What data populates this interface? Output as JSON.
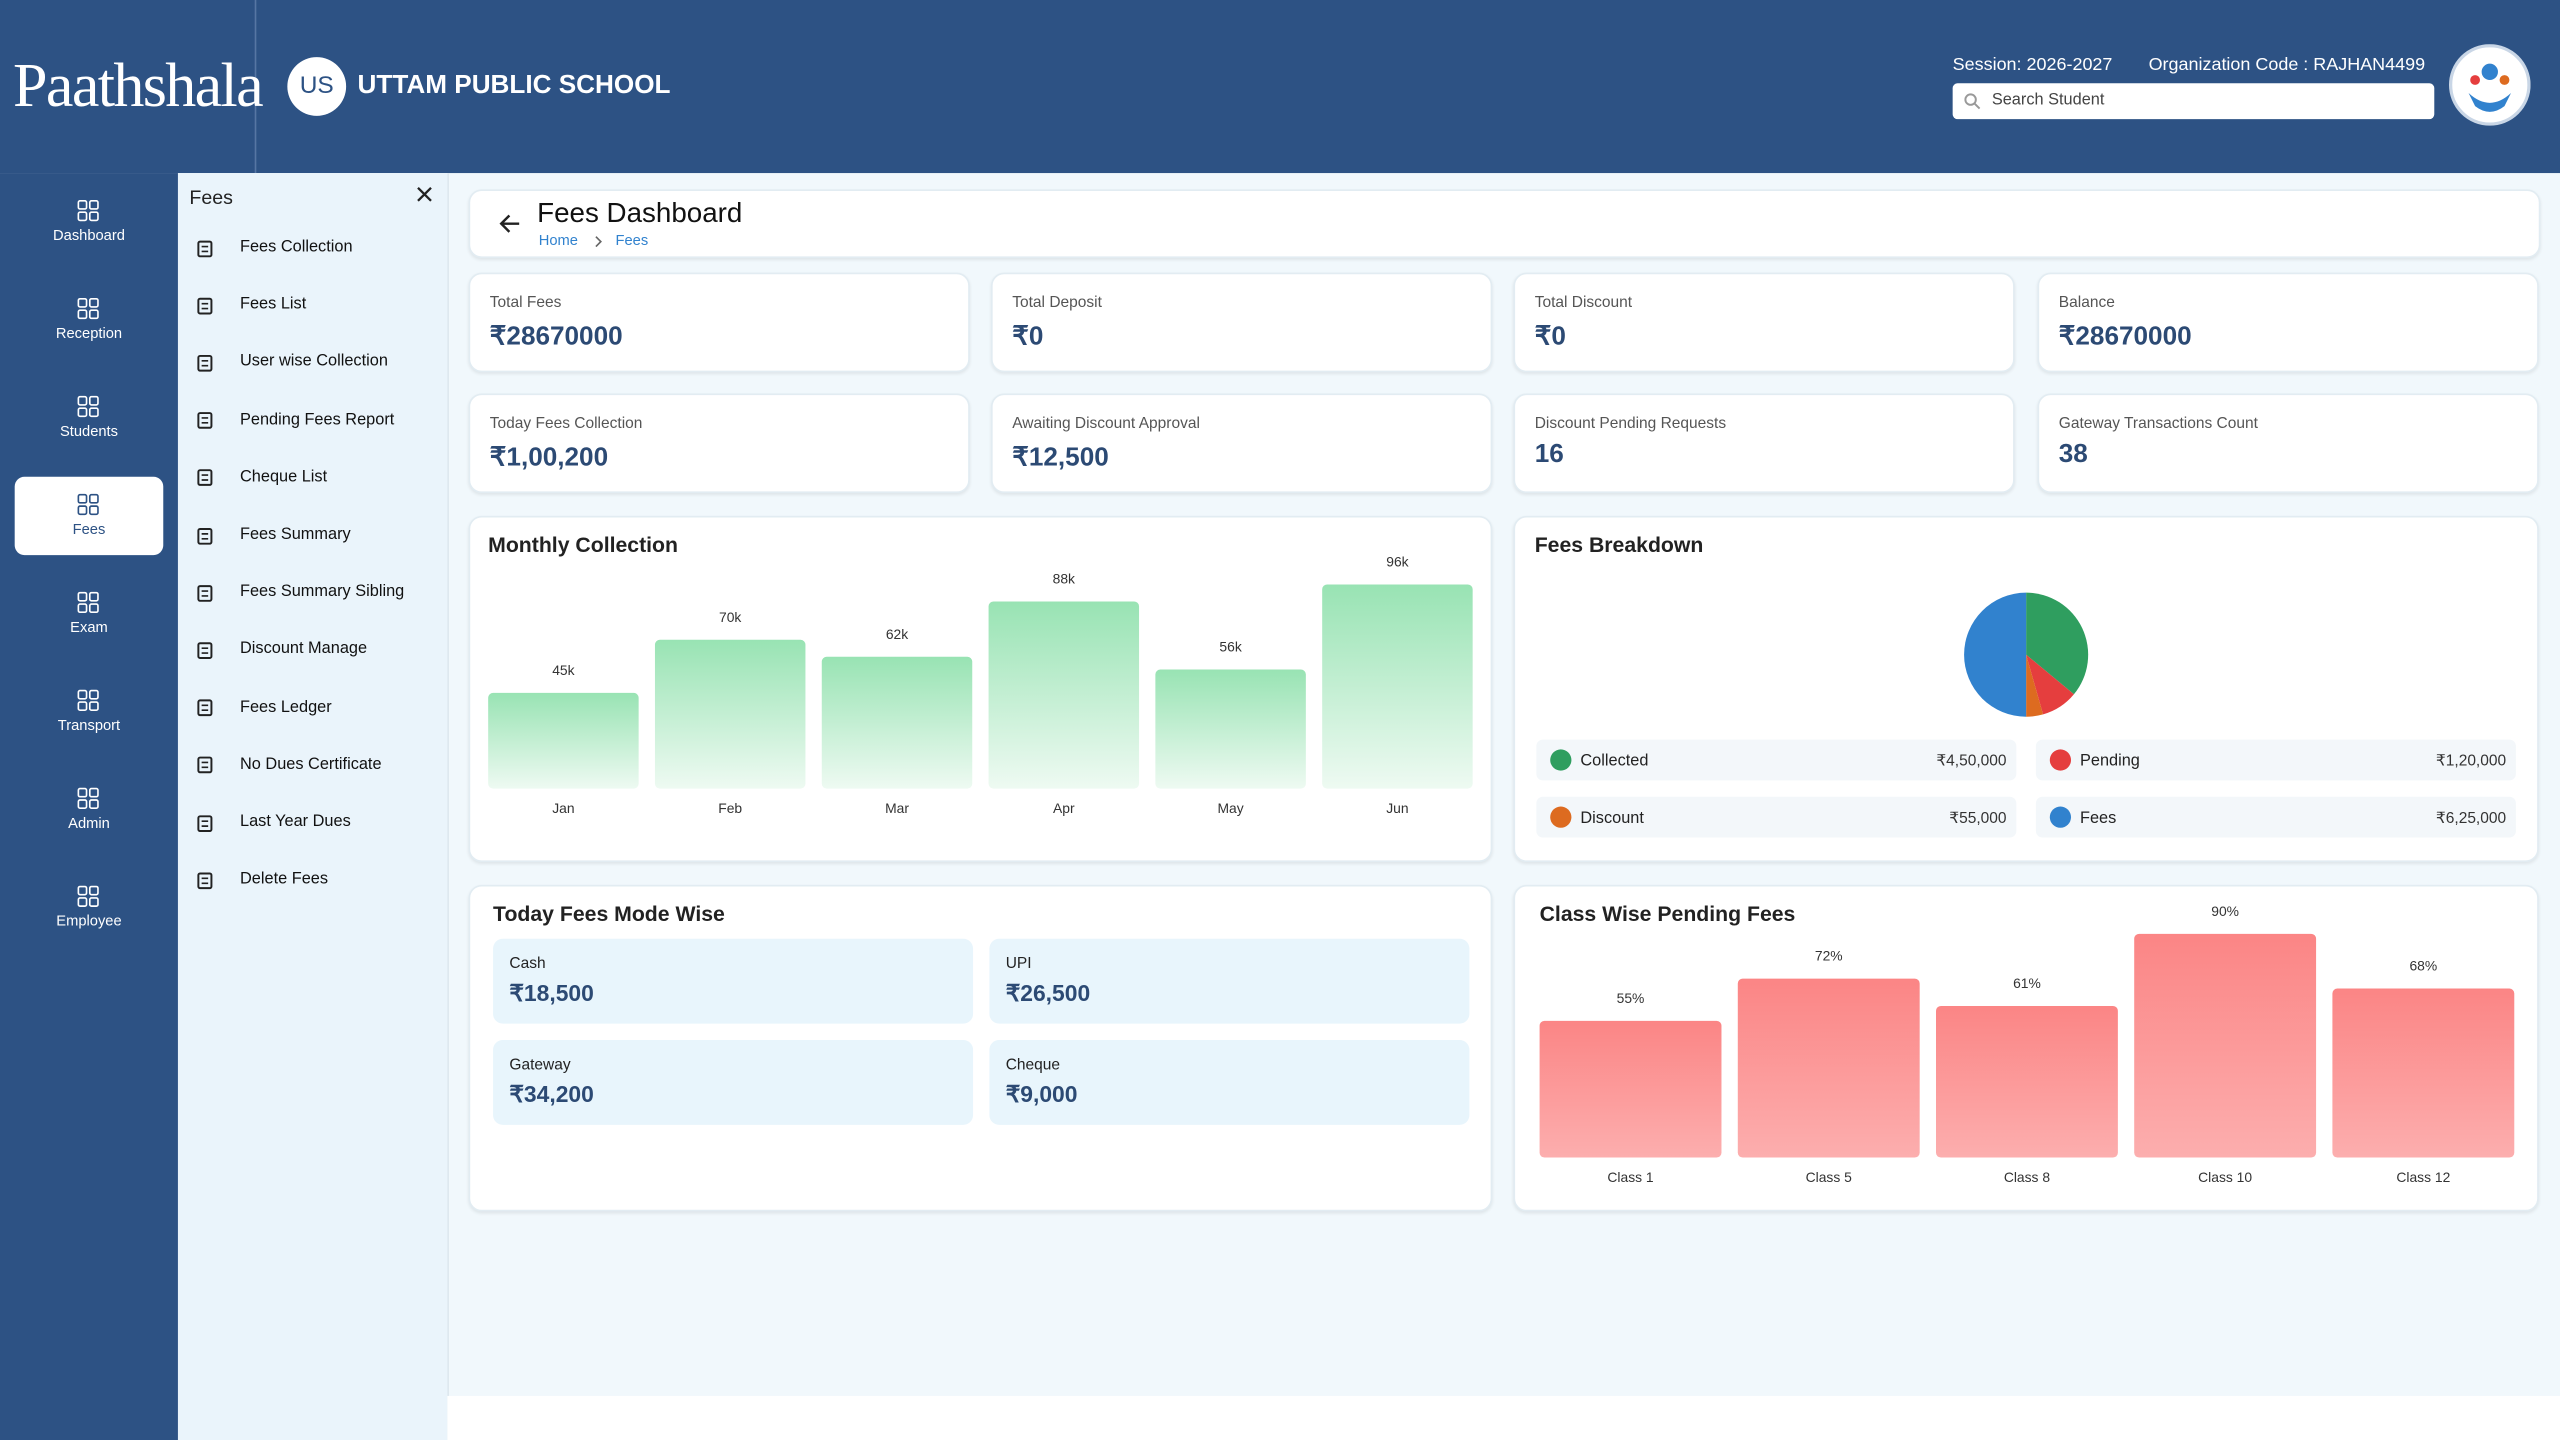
{
  "header": {
    "logo": "Paathshala",
    "school_initials": "US",
    "school_name": "UTTAM PUBLIC SCHOOL",
    "session": "Session: 2026-2027",
    "org_code": "Organization Code : RAJHAN4499",
    "search_placeholder": "Search Student"
  },
  "nav": [
    "Dashboard",
    "Reception",
    "Students",
    "Fees",
    "Exam",
    "Transport",
    "Admin",
    "Employee"
  ],
  "submenu": {
    "title": "Fees",
    "items": [
      "Fees Collection",
      "Fees List",
      "User wise Collection",
      "Pending Fees Report",
      "Cheque List",
      "Fees Summary",
      "Fees Summary Sibling",
      "Discount Manage",
      "Fees Ledger",
      "No Dues Certificate",
      "Last Year Dues",
      "Delete Fees"
    ]
  },
  "page": {
    "title": "Fees Dashboard",
    "breadcrumb": [
      "Home",
      "Fees"
    ]
  },
  "stats": [
    {
      "label": "Total Fees",
      "value": "₹28670000"
    },
    {
      "label": "Total Deposit",
      "value": "₹0"
    },
    {
      "label": "Total Discount",
      "value": "₹0"
    },
    {
      "label": "Balance",
      "value": "₹28670000"
    },
    {
      "label": "Today Fees Collection",
      "value": "₹1,00,200"
    },
    {
      "label": "Awaiting Discount Approval",
      "value": "₹12,500"
    },
    {
      "label": "Discount Pending Requests",
      "value": "16"
    },
    {
      "label": "Gateway Transactions Count",
      "value": "38"
    }
  ],
  "mode_wise": {
    "title": "Today Fees Mode Wise",
    "items": [
      {
        "label": "Cash",
        "value": "₹18,500"
      },
      {
        "label": "UPI",
        "value": "₹26,500"
      },
      {
        "label": "Gateway",
        "value": "₹34,200"
      },
      {
        "label": "Cheque",
        "value": "₹9,000"
      }
    ]
  },
  "chart_data": [
    {
      "type": "bar",
      "title": "Monthly Collection",
      "categories": [
        "Jan",
        "Feb",
        "Mar",
        "Apr",
        "May",
        "Jun"
      ],
      "values": [
        45000,
        70000,
        62000,
        88000,
        56000,
        96000
      ],
      "value_labels": [
        "45k",
        "70k",
        "62k",
        "88k",
        "56k",
        "96k"
      ],
      "colors": [
        "#98e3b3",
        "#eefaf2"
      ]
    },
    {
      "type": "pie",
      "title": "Fees Breakdown",
      "categories": [
        "Collected",
        "Pending",
        "Discount",
        "Fees"
      ],
      "values": [
        450000,
        120000,
        55000,
        625000
      ],
      "value_labels": [
        "₹4,50,000",
        "₹1,20,000",
        "₹55,000",
        "₹6,25,000"
      ],
      "colors": [
        "#2f9e5f",
        "#e53e3e",
        "#dd6b20",
        "#3182ce"
      ]
    },
    {
      "type": "bar",
      "title": "Class Wise Pending Fees",
      "categories": [
        "Class 1",
        "Class 5",
        "Class 8",
        "Class 10",
        "Class 12"
      ],
      "values": [
        55,
        72,
        61,
        90,
        68
      ],
      "value_labels": [
        "55%",
        "72%",
        "61%",
        "90%",
        "68%"
      ],
      "colors": [
        "#fb8585",
        "#fcaeae"
      ]
    }
  ]
}
